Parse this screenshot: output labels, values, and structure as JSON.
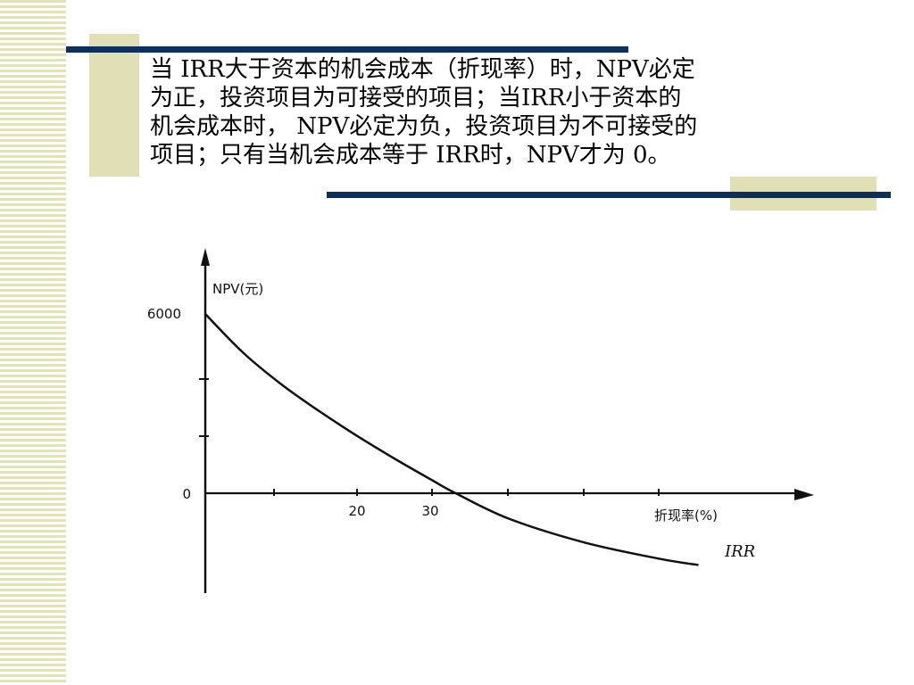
{
  "slide": {
    "text_lines": [
      "当 IRR大于资本的机会成本（折现率）时，NPV必定",
      "为正，投资项目为可接受的项目；当IRR小于资本的",
      "机会成本时， NPV必定为负，投资项目为不可接受的",
      "项目；只有当机会成本等于 IRR时，NPV才为 0。"
    ],
    "colors": {
      "accent_navy": "#0d2f5e",
      "accent_khaki": "#e0dfb5"
    }
  },
  "chart_data": {
    "type": "line",
    "ylabel": "NPV(元)",
    "xlabel": "折现率(%)",
    "x_ticks": [
      20,
      30
    ],
    "y_ticks": [
      0,
      6000
    ],
    "annotation": "IRR",
    "series": [
      {
        "x": [
          0,
          5,
          10,
          15,
          20,
          25,
          30,
          33,
          40,
          50,
          60,
          65
        ],
        "y": [
          6000,
          4700,
          3650,
          2750,
          1920,
          1150,
          420,
          0,
          -850,
          -1650,
          -2200,
          -2400
        ]
      }
    ]
  }
}
